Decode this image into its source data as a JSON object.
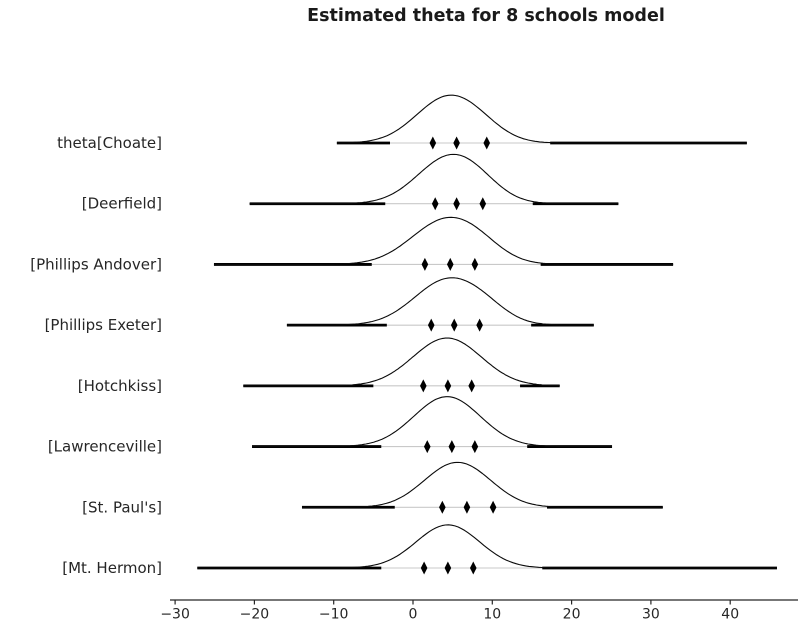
{
  "chart_data": {
    "type": "ridgeline",
    "title": "Estimated theta for 8 schools model",
    "xlabel": "",
    "ylabel": "",
    "x_ticks": [
      -30,
      -20,
      -10,
      0,
      10,
      20,
      30,
      40
    ],
    "axis_range": [
      -33.5,
      48.5
    ],
    "legend": "none",
    "grid": false,
    "colors": {
      "curve": "#0a0a0a",
      "tail_segment": "#000000",
      "baseline": "#c9c9c9",
      "marker": "#000000",
      "axis": "#262626",
      "text": "#262626",
      "title_text": "#1a1a1a"
    },
    "series": [
      {
        "label": "theta[Choate]",
        "sample_range": [
          -9.6,
          42.1
        ],
        "hdi": [
          -2.9,
          17.3
        ],
        "quartiles": [
          2.5,
          5.5,
          9.3
        ],
        "mode": 4.6,
        "density_components": [
          {
            "m": 4.3,
            "s": 4.0,
            "a": 0.85
          },
          {
            "m": 8.5,
            "s": 3.2,
            "a": 0.15
          }
        ]
      },
      {
        "label": "[Deerfield]",
        "sample_range": [
          -20.6,
          25.9
        ],
        "hdi": [
          -3.5,
          15.1
        ],
        "quartiles": [
          2.8,
          5.5,
          8.8
        ],
        "mode": 4.9,
        "density_components": [
          {
            "m": 4.6,
            "s": 4.1,
            "a": 0.88
          },
          {
            "m": 8.2,
            "s": 3.0,
            "a": 0.13
          }
        ]
      },
      {
        "label": "[Phillips Andover]",
        "sample_range": [
          -25.1,
          32.8
        ],
        "hdi": [
          -5.2,
          16.1
        ],
        "quartiles": [
          1.5,
          4.7,
          7.8
        ],
        "mode": 4.3,
        "density_components": [
          {
            "m": 4.2,
            "s": 4.4,
            "a": 0.85
          },
          {
            "m": 8.4,
            "s": 3.0,
            "a": 0.13
          }
        ]
      },
      {
        "label": "[Phillips Exeter]",
        "sample_range": [
          -15.9,
          22.8
        ],
        "hdi": [
          -3.3,
          14.9
        ],
        "quartiles": [
          2.3,
          5.2,
          8.4
        ],
        "mode": 4.7,
        "density_components": [
          {
            "m": 4.5,
            "s": 4.3,
            "a": 0.88
          },
          {
            "m": 9.3,
            "s": 2.8,
            "a": 0.12
          }
        ]
      },
      {
        "label": "[Hotchkiss]",
        "sample_range": [
          -21.4,
          18.5
        ],
        "hdi": [
          -5.0,
          13.5
        ],
        "quartiles": [
          1.3,
          4.4,
          7.4
        ],
        "mode": 4.4,
        "density_components": [
          {
            "m": 4.3,
            "s": 4.3,
            "a": 0.92
          }
        ]
      },
      {
        "label": "[Lawrenceville]",
        "sample_range": [
          -20.3,
          25.1
        ],
        "hdi": [
          -4.0,
          14.4
        ],
        "quartiles": [
          1.8,
          4.9,
          7.8
        ],
        "mode": 4.3,
        "density_components": [
          {
            "m": 4.3,
            "s": 4.2,
            "a": 0.96
          }
        ]
      },
      {
        "label": "[St. Paul's]",
        "sample_range": [
          -14.0,
          31.5
        ],
        "hdi": [
          -2.3,
          16.9
        ],
        "quartiles": [
          3.7,
          6.8,
          10.1
        ],
        "mode": 5.7,
        "density_components": [
          {
            "m": 4.0,
            "s": 3.7,
            "a": 0.5
          },
          {
            "m": 7.4,
            "s": 3.7,
            "a": 0.46
          }
        ]
      },
      {
        "label": "[Mt. Hermon]",
        "sample_range": [
          -27.2,
          45.9
        ],
        "hdi": [
          -4.0,
          16.3
        ],
        "quartiles": [
          1.4,
          4.4,
          7.6
        ],
        "mode": 4.4,
        "density_components": [
          {
            "m": 4.4,
            "s": 4.0,
            "a": 0.83
          }
        ]
      }
    ]
  }
}
